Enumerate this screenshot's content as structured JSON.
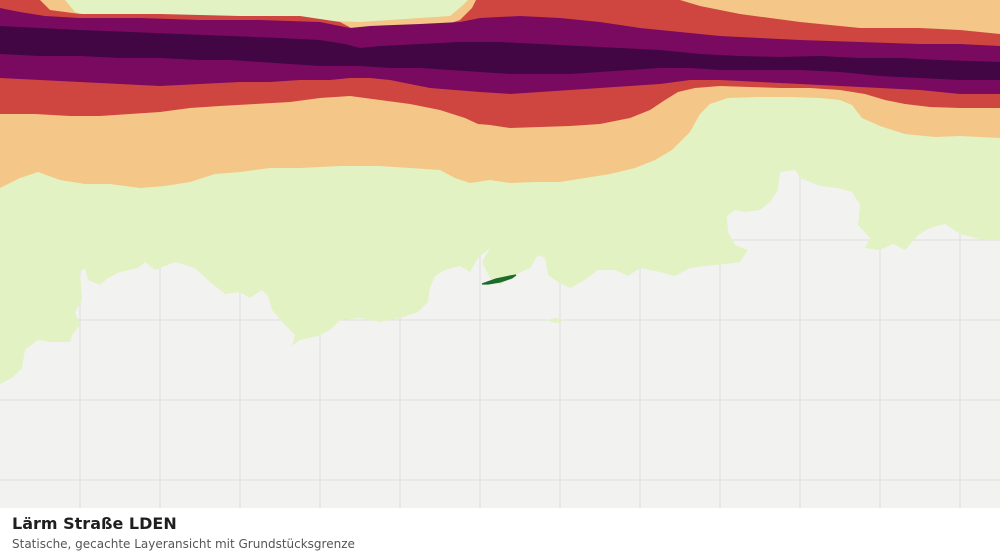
{
  "map": {
    "layer": "Lärm Straße LDEN",
    "colors": {
      "background": "#f2f3f1",
      "grid": "#dddddd",
      "band_lightest": "#e2f2c3",
      "band_light": "#f4c687",
      "band_medium": "#cf4640",
      "band_dark": "#7a0a60",
      "band_darkest": "#420645",
      "parcel_boundary": "#1f6b2e"
    }
  },
  "caption": {
    "title": "Lärm Straße LDEN",
    "subtitle": "Statische, gecachte Layeransicht mit Grundstücksgrenze"
  }
}
